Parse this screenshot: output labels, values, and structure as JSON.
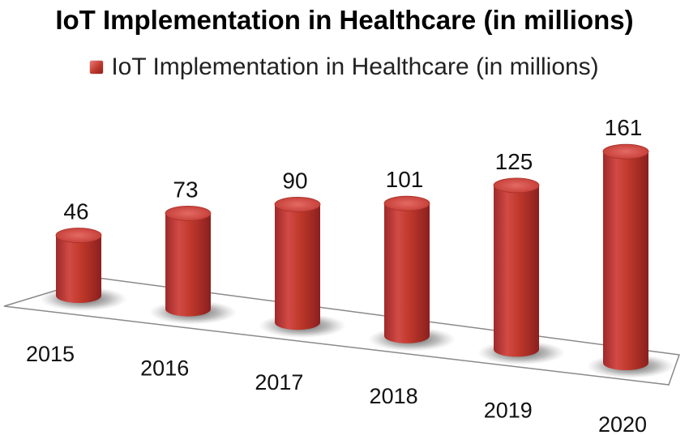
{
  "chart_data": {
    "type": "bar",
    "title": "IoT Implementation in Healthcare (in millions)",
    "categories": [
      "2015",
      "2016",
      "2017",
      "2018",
      "2019",
      "2020"
    ],
    "series": [
      {
        "name": "IoT Implementation in Healthcare (in millions)",
        "values": [
          46,
          73,
          90,
          101,
          125,
          161
        ]
      }
    ],
    "legend": {
      "label": "IoT Implementation in Healthcare (in millions)",
      "position": "top"
    },
    "xlabel": "",
    "ylabel": "",
    "ylim": [
      0,
      180
    ],
    "colors": {
      "bar": "#c0392b",
      "bar_light": "#ea7b7b",
      "bar_dark": "#8b1f1f",
      "floor": "#ffffff",
      "floor_edge": "#8a8a8a"
    }
  }
}
